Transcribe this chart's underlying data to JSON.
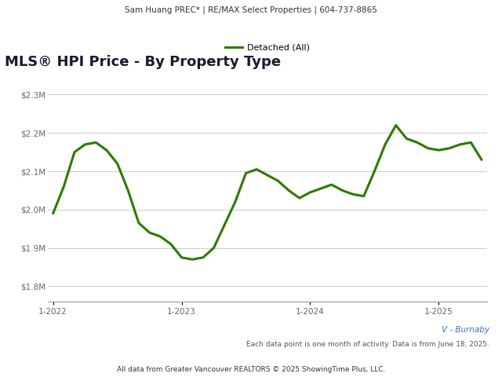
{
  "header_text": "Sam Huang PREC* | RE/MAX Select Properties | 604-737-8865",
  "title": "MLS® HPI Price - By Property Type",
  "legend_label": "Detached (All)",
  "line_color": "#2d7a00",
  "line_width": 2.2,
  "background_color": "#ffffff",
  "plot_bg_color": "#ffffff",
  "header_bg_color": "#e0e0e0",
  "footer_text1": "V - Burnaby",
  "footer_text2": "Each data point is one month of activity. Data is from June 18, 2025.",
  "footer_text3": "All data from Greater Vancouver REALTORS © 2025 ShowingTime Plus, LLC.",
  "ytick_values": [
    1800000,
    1900000,
    2000000,
    2100000,
    2200000,
    2300000
  ],
  "ylim": [
    1760000,
    2350000
  ],
  "xtick_labels": [
    "1-2022",
    "1-2023",
    "1-2024",
    "1-2025"
  ],
  "values": [
    1990000,
    2060000,
    2150000,
    2170000,
    2175000,
    2155000,
    2120000,
    2050000,
    1965000,
    1940000,
    1930000,
    1910000,
    1875000,
    1870000,
    1875000,
    1900000,
    1960000,
    2020000,
    2095000,
    2105000,
    2090000,
    2075000,
    2050000,
    2030000,
    2045000,
    2055000,
    2065000,
    2050000,
    2040000,
    2035000,
    2100000,
    2170000,
    2220000,
    2185000,
    2175000,
    2160000,
    2155000,
    2160000,
    2170000,
    2175000,
    2130000
  ],
  "title_color": "#1a1a2e",
  "title_fontsize": 13,
  "axis_label_color": "#666666",
  "grid_color": "#cccccc",
  "header_font_color": "#333333",
  "footer_color1": "#3a6fbf",
  "footer_color2": "#555555",
  "footer_color3": "#333333"
}
